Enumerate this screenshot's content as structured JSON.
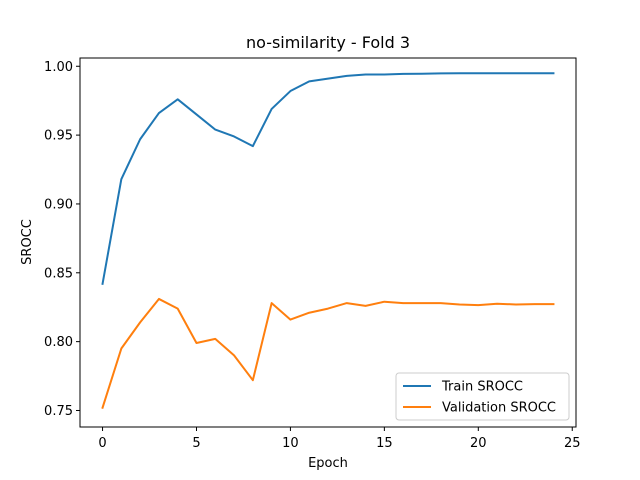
{
  "chart_data": {
    "type": "line",
    "title": "no-similarity - Fold 3",
    "xlabel": "Epoch",
    "ylabel": "SROCC",
    "xlim": [
      -1.2,
      25.2
    ],
    "ylim": [
      0.738,
      1.006
    ],
    "xticks": [
      0,
      5,
      10,
      15,
      20,
      25
    ],
    "xtick_labels": [
      "0",
      "5",
      "10",
      "15",
      "20",
      "25"
    ],
    "yticks": [
      0.75,
      0.8,
      0.85,
      0.9,
      0.95,
      1.0
    ],
    "ytick_labels": [
      "0.75",
      "0.80",
      "0.85",
      "0.90",
      "0.95",
      "1.00"
    ],
    "grid": false,
    "legend_position": "lower-right",
    "x": [
      0,
      1,
      2,
      3,
      4,
      5,
      6,
      7,
      8,
      9,
      10,
      11,
      12,
      13,
      14,
      15,
      16,
      17,
      18,
      19,
      20,
      21,
      22,
      23,
      24
    ],
    "series": [
      {
        "name": "Train SROCC",
        "color": "#1f77b4",
        "values": [
          0.842,
          0.918,
          0.947,
          0.966,
          0.976,
          0.965,
          0.954,
          0.949,
          0.942,
          0.969,
          0.982,
          0.989,
          0.991,
          0.993,
          0.994,
          0.994,
          0.9945,
          0.9946,
          0.9948,
          0.9949,
          0.9949,
          0.9949,
          0.9949,
          0.9949,
          0.9949
        ]
      },
      {
        "name": "Validation SROCC",
        "color": "#ff7f0e",
        "values": [
          0.752,
          0.795,
          0.814,
          0.831,
          0.824,
          0.799,
          0.802,
          0.79,
          0.772,
          0.828,
          0.816,
          0.821,
          0.824,
          0.828,
          0.826,
          0.829,
          0.828,
          0.828,
          0.828,
          0.827,
          0.8265,
          0.8275,
          0.827,
          0.8272,
          0.8272
        ]
      }
    ]
  }
}
